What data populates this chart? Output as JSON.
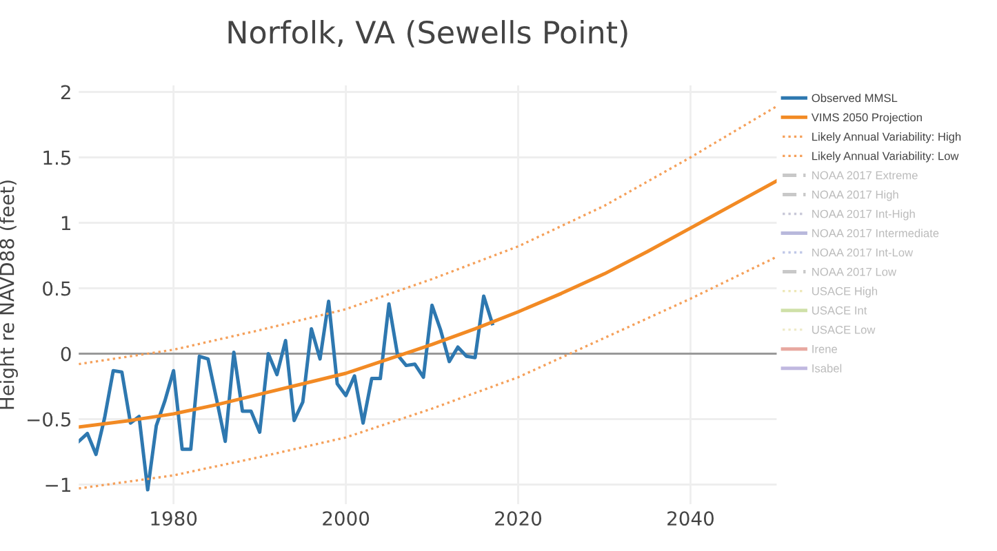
{
  "chart_data": {
    "type": "line",
    "title": "Norfolk, VA (Sewells Point)",
    "ylabel": "Height re NAVD88 (feet)",
    "xlim": [
      1969,
      2050
    ],
    "ylim": [
      -1.15,
      2.05
    ],
    "xticks": [
      1980,
      2000,
      2020,
      2040
    ],
    "yticks": [
      -1,
      -0.5,
      0,
      0.5,
      1,
      1.5,
      2
    ],
    "grid": true,
    "legend": "right",
    "ref_lines": [
      {
        "axis": "y",
        "value": 0,
        "color": "#999999"
      }
    ],
    "series": [
      {
        "name": "Observed MMSL",
        "color": "#2e78b0",
        "line_style": "solid",
        "x": [
          1969,
          1970,
          1971,
          1972,
          1973,
          1974,
          1975,
          1976,
          1977,
          1978,
          1979,
          1980,
          1981,
          1982,
          1983,
          1984,
          1985,
          1986,
          1987,
          1988,
          1989,
          1990,
          1991,
          1992,
          1993,
          1994,
          1995,
          1996,
          1997,
          1998,
          1999,
          2000,
          2001,
          2002,
          2003,
          2004,
          2005,
          2006,
          2007,
          2008,
          2009,
          2010,
          2011,
          2012,
          2013,
          2014,
          2015,
          2016,
          2017
        ],
        "values": [
          -0.67,
          -0.61,
          -0.77,
          -0.49,
          -0.13,
          -0.14,
          -0.53,
          -0.48,
          -1.04,
          -0.55,
          -0.36,
          -0.13,
          -0.73,
          -0.73,
          -0.02,
          -0.04,
          -0.35,
          -0.67,
          0.01,
          -0.44,
          -0.44,
          -0.6,
          0.0,
          -0.16,
          0.1,
          -0.51,
          -0.37,
          0.19,
          -0.04,
          0.4,
          -0.23,
          -0.32,
          -0.17,
          -0.53,
          -0.19,
          -0.19,
          0.38,
          -0.01,
          -0.09,
          -0.08,
          -0.18,
          0.37,
          0.18,
          -0.06,
          0.05,
          -0.02,
          -0.03,
          0.44,
          0.23
        ]
      },
      {
        "name": "VIMS 2050 Projection",
        "color": "#f28a24",
        "line_style": "solid",
        "x": [
          1969,
          1975,
          1980,
          1985,
          1990,
          1995,
          2000,
          2005,
          2010,
          2015,
          2020,
          2025,
          2030,
          2035,
          2040,
          2045,
          2050
        ],
        "values": [
          -0.56,
          -0.51,
          -0.46,
          -0.39,
          -0.31,
          -0.23,
          -0.15,
          -0.04,
          0.07,
          0.19,
          0.32,
          0.46,
          0.61,
          0.78,
          0.96,
          1.14,
          1.32
        ]
      },
      {
        "name": "Likely Annual Variability: High",
        "color": "#f5a05a",
        "line_style": "dotted",
        "x": [
          1969,
          1980,
          1990,
          2000,
          2010,
          2020,
          2030,
          2040,
          2050
        ],
        "values": [
          -0.08,
          0.03,
          0.18,
          0.34,
          0.57,
          0.82,
          1.13,
          1.5,
          1.89
        ]
      },
      {
        "name": "Likely Annual Variability: Low",
        "color": "#f5a05a",
        "line_style": "dotted",
        "x": [
          1969,
          1980,
          1990,
          2000,
          2010,
          2020,
          2025,
          2030,
          2040,
          2050
        ],
        "values": [
          -1.03,
          -0.93,
          -0.79,
          -0.64,
          -0.42,
          -0.18,
          -0.03,
          0.12,
          0.42,
          0.74
        ]
      },
      {
        "name": "NOAA 2017 Extreme",
        "color": "#c8c8c8",
        "line_style": "dashed"
      },
      {
        "name": "NOAA 2017 High",
        "color": "#c8c8c8",
        "line_style": "dashed"
      },
      {
        "name": "NOAA 2017 Int-High",
        "color": "#c8c8d8",
        "line_style": "dotted"
      },
      {
        "name": "NOAA 2017 Intermediate",
        "color": "#b8b8dc",
        "line_style": "solid"
      },
      {
        "name": "NOAA 2017 Int-Low",
        "color": "#c0c8e8",
        "line_style": "dotted"
      },
      {
        "name": "NOAA 2017 Low",
        "color": "#c8c8c8",
        "line_style": "dashed"
      },
      {
        "name": "USACE High",
        "color": "#eee8b8",
        "line_style": "dotted"
      },
      {
        "name": "USACE Int",
        "color": "#cfe0a8",
        "line_style": "solid"
      },
      {
        "name": "USACE Low",
        "color": "#eeeac8",
        "line_style": "dotted"
      },
      {
        "name": "Irene",
        "color": "#e8a8a0",
        "line_style": "solid"
      },
      {
        "name": "Isabel",
        "color": "#c0b8e0",
        "line_style": "solid"
      }
    ]
  }
}
